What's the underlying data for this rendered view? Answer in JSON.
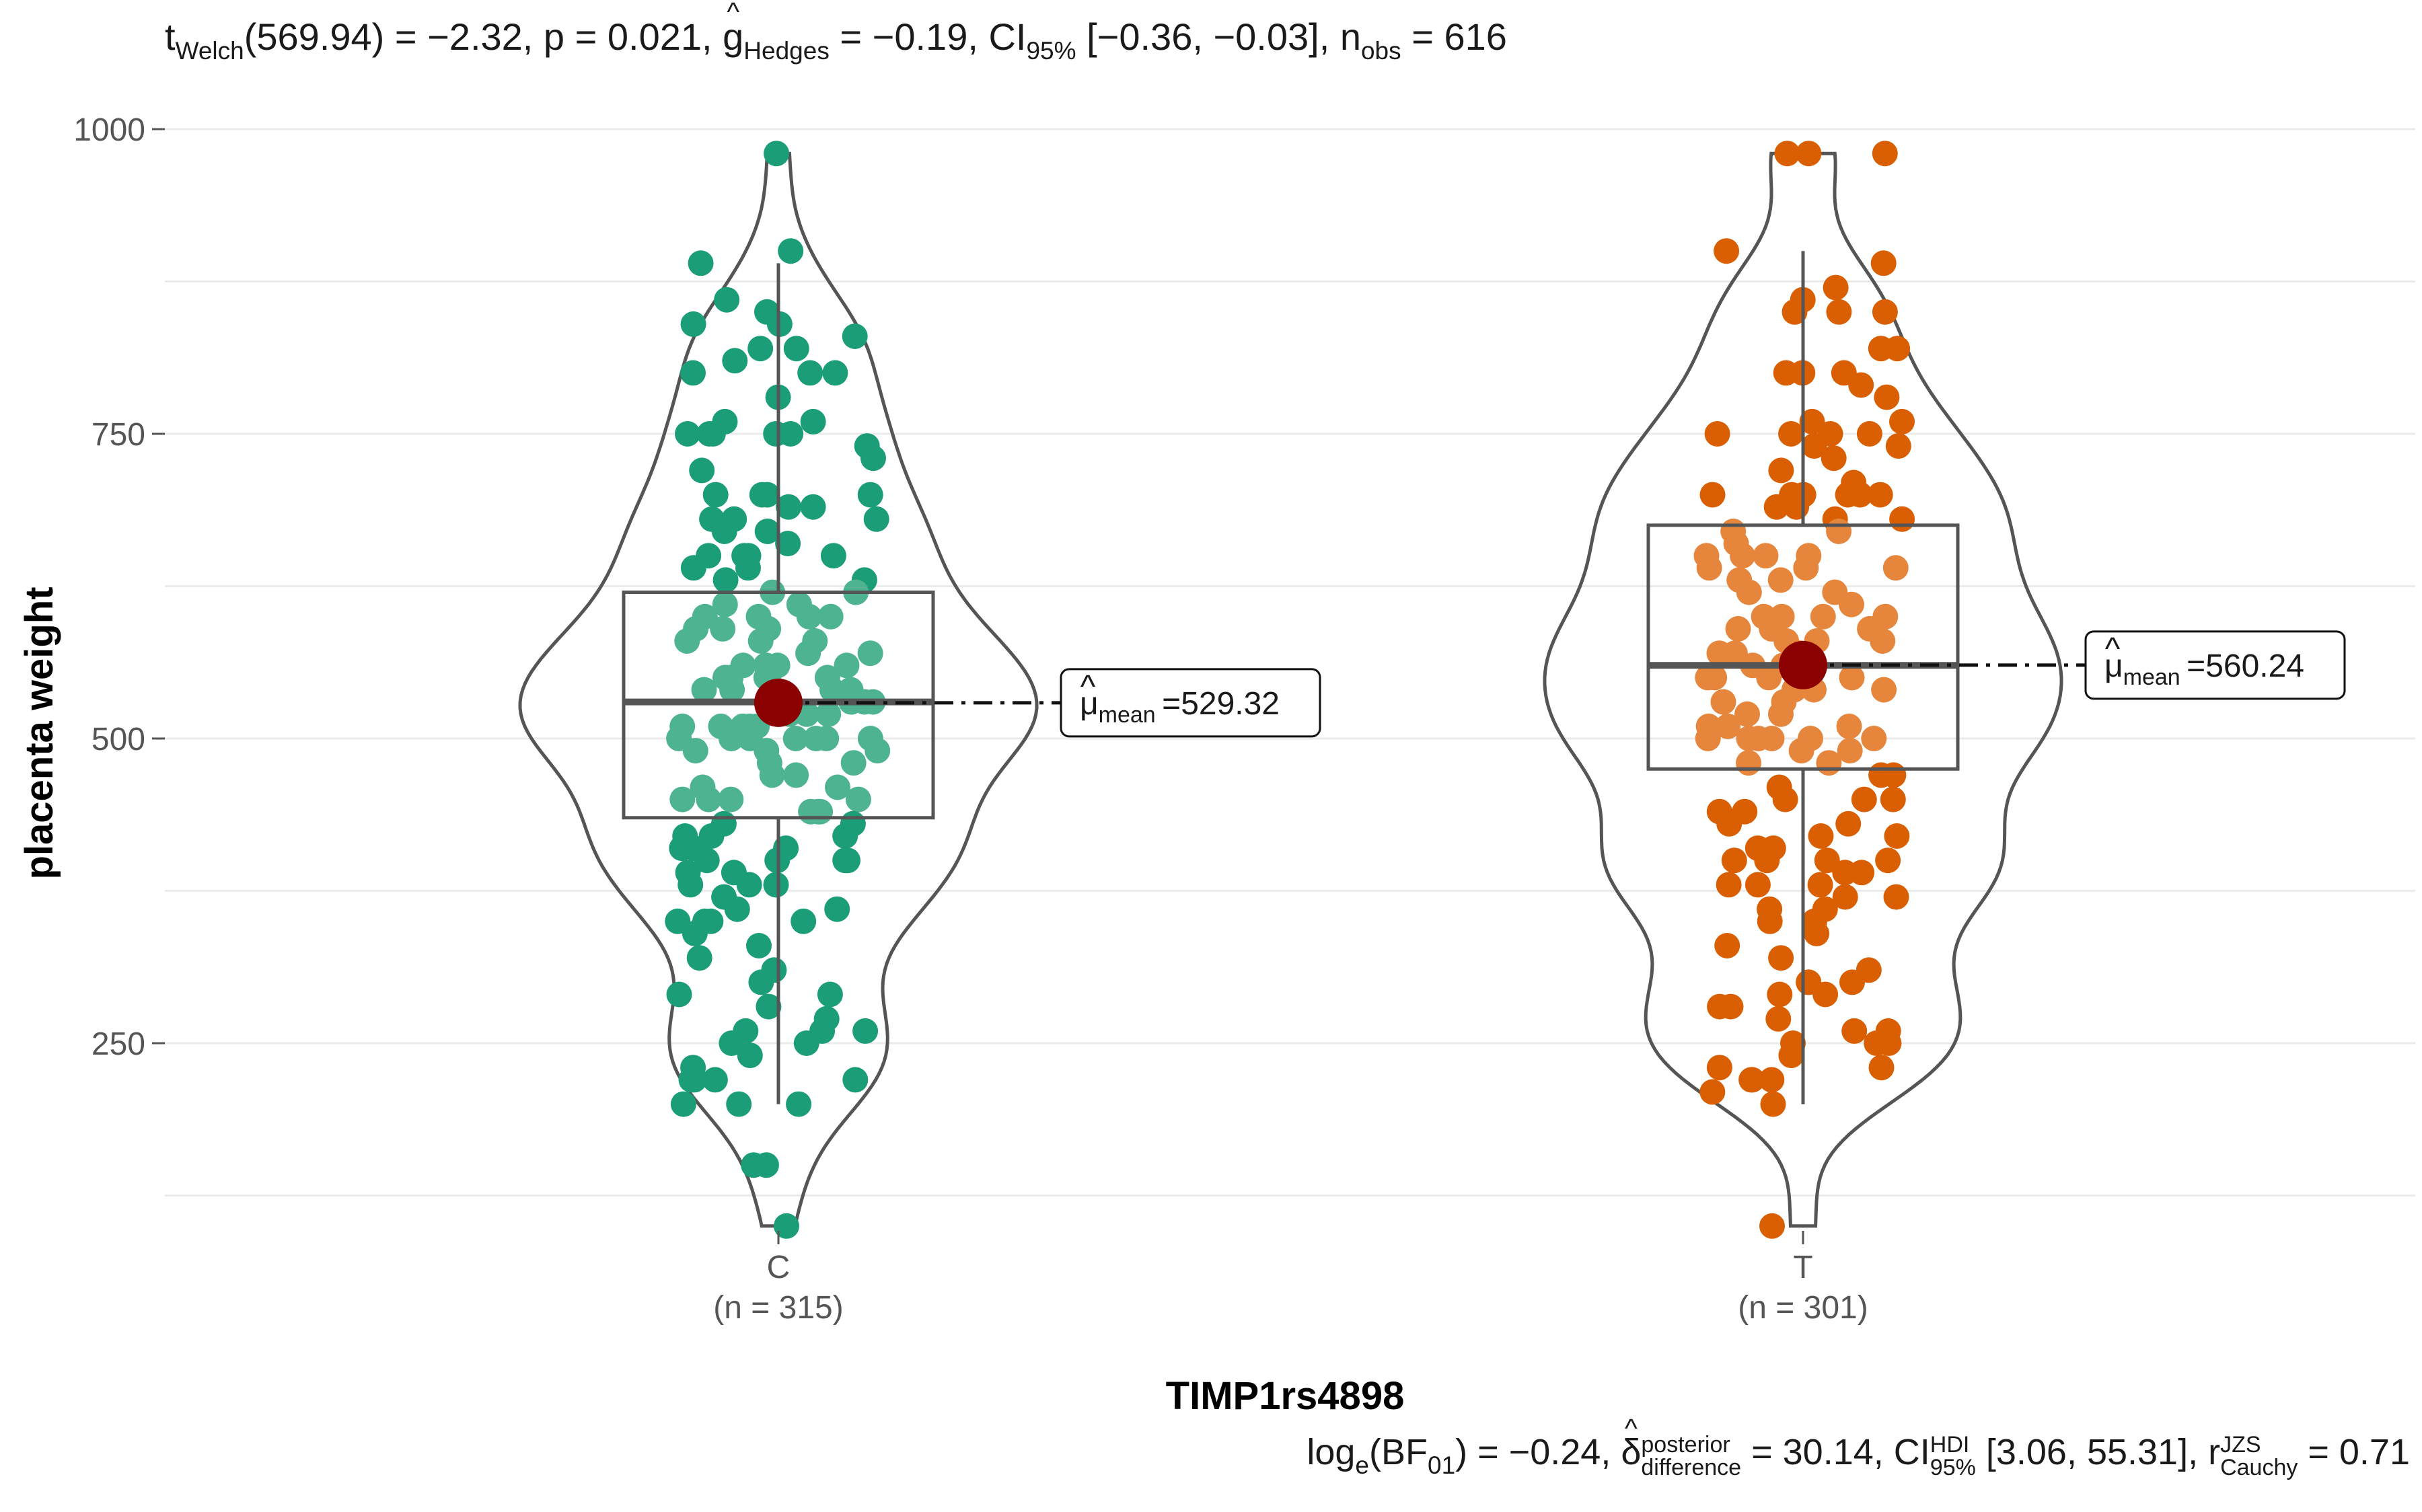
{
  "subtitle": {
    "t": "t",
    "t_sub": "Welch",
    "t_rest": "(569.94) = −2.32, p = 0.021, ",
    "g": "g",
    "g_sub": "Hedges",
    "g_rest": " = −0.19, CI",
    "ci_sub": "95%",
    "ci_rest": " [−0.36, −0.03], n",
    "n_sub": "obs",
    "n_rest": " = 616"
  },
  "caption": {
    "log": "log",
    "log_sub": "e",
    "bf": "(BF",
    "bf_sub": "01",
    "bf_rest": ") = −0.24, ",
    "delta": "δ",
    "delta_sup": "posterior",
    "delta_sub": "difference",
    "delta_rest": " = 30.14, CI",
    "ci_sup": "HDI",
    "ci_sub": "95%",
    "ci_rest": " [3.06, 55.31], r",
    "r_sup": "JZS",
    "r_sub": "Cauchy",
    "r_rest": " = 0.71"
  },
  "chart_data": {
    "type": "violin-box-scatter",
    "xlabel": "TIMP1rs4898",
    "ylabel": "placenta weight",
    "ylim": [
      80,
      1000
    ],
    "yticks": [
      250,
      500,
      750,
      1000
    ],
    "grid": true,
    "groups": [
      {
        "name": "C",
        "n_label": "(n = 315)",
        "color": "#1b9e77",
        "box": {
          "q1": 435,
          "median": 530,
          "q3": 620,
          "whisker_low": 200,
          "whisker_high": 890
        },
        "violin_min": 100,
        "violin_max": 980,
        "mean": 529.32,
        "mean_label": "=529.32",
        "points": [
          980,
          900,
          890,
          860,
          850,
          840,
          840,
          830,
          820,
          820,
          810,
          800,
          800,
          800,
          780,
          760,
          760,
          750,
          750,
          750,
          750,
          750,
          740,
          730,
          720,
          700,
          700,
          700,
          700,
          690,
          690,
          680,
          680,
          680,
          670,
          670,
          660,
          650,
          650,
          650,
          650,
          640,
          640,
          630,
          630,
          620,
          620,
          610,
          610,
          600,
          600,
          600,
          600,
          590,
          590,
          590,
          580,
          580,
          580,
          570,
          570,
          560,
          560,
          560,
          560,
          560,
          550,
          550,
          550,
          550,
          550,
          540,
          540,
          540,
          540,
          530,
          530,
          530,
          520,
          520,
          520,
          510,
          510,
          510,
          510,
          510,
          500,
          500,
          500,
          500,
          500,
          500,
          500,
          490,
          490,
          490,
          480,
          480,
          470,
          470,
          460,
          460,
          450,
          450,
          450,
          450,
          440,
          440,
          440,
          430,
          430,
          420,
          420,
          420,
          410,
          410,
          410,
          400,
          400,
          400,
          400,
          390,
          390,
          380,
          380,
          380,
          370,
          360,
          360,
          350,
          350,
          350,
          350,
          340,
          330,
          320,
          310,
          300,
          290,
          290,
          280,
          270,
          260,
          260,
          260,
          250,
          250,
          240,
          230,
          220,
          220,
          220,
          220,
          200,
          200,
          200,
          150,
          150,
          100
        ]
      },
      {
        "name": "T",
        "n_label": "(n = 301)",
        "color": "#d95f02",
        "box": {
          "q1": 475,
          "median": 560,
          "q3": 675,
          "whisker_low": 200,
          "whisker_high": 900
        },
        "violin_min": 100,
        "violin_max": 980,
        "mean": 560.24,
        "mean_label": "=560.24",
        "points": [
          980,
          980,
          980,
          900,
          890,
          870,
          860,
          850,
          850,
          850,
          820,
          820,
          800,
          800,
          800,
          790,
          780,
          760,
          760,
          750,
          750,
          750,
          750,
          740,
          740,
          730,
          720,
          710,
          700,
          700,
          700,
          700,
          700,
          700,
          690,
          690,
          680,
          680,
          670,
          670,
          660,
          650,
          650,
          650,
          650,
          640,
          640,
          640,
          630,
          630,
          620,
          620,
          610,
          600,
          600,
          600,
          600,
          590,
          590,
          590,
          580,
          580,
          580,
          570,
          570,
          570,
          560,
          560,
          560,
          550,
          550,
          550,
          550,
          540,
          540,
          540,
          530,
          530,
          520,
          520,
          510,
          510,
          510,
          500,
          500,
          500,
          500,
          500,
          500,
          490,
          490,
          480,
          480,
          470,
          470,
          460,
          450,
          450,
          450,
          440,
          440,
          430,
          430,
          420,
          420,
          410,
          410,
          400,
          400,
          400,
          400,
          390,
          390,
          380,
          380,
          380,
          370,
          370,
          360,
          360,
          350,
          350,
          340,
          330,
          320,
          310,
          300,
          300,
          300,
          290,
          290,
          280,
          280,
          270,
          260,
          260,
          250,
          250,
          250,
          240,
          230,
          230,
          220,
          220,
          220,
          210,
          200,
          100
        ]
      }
    ]
  }
}
